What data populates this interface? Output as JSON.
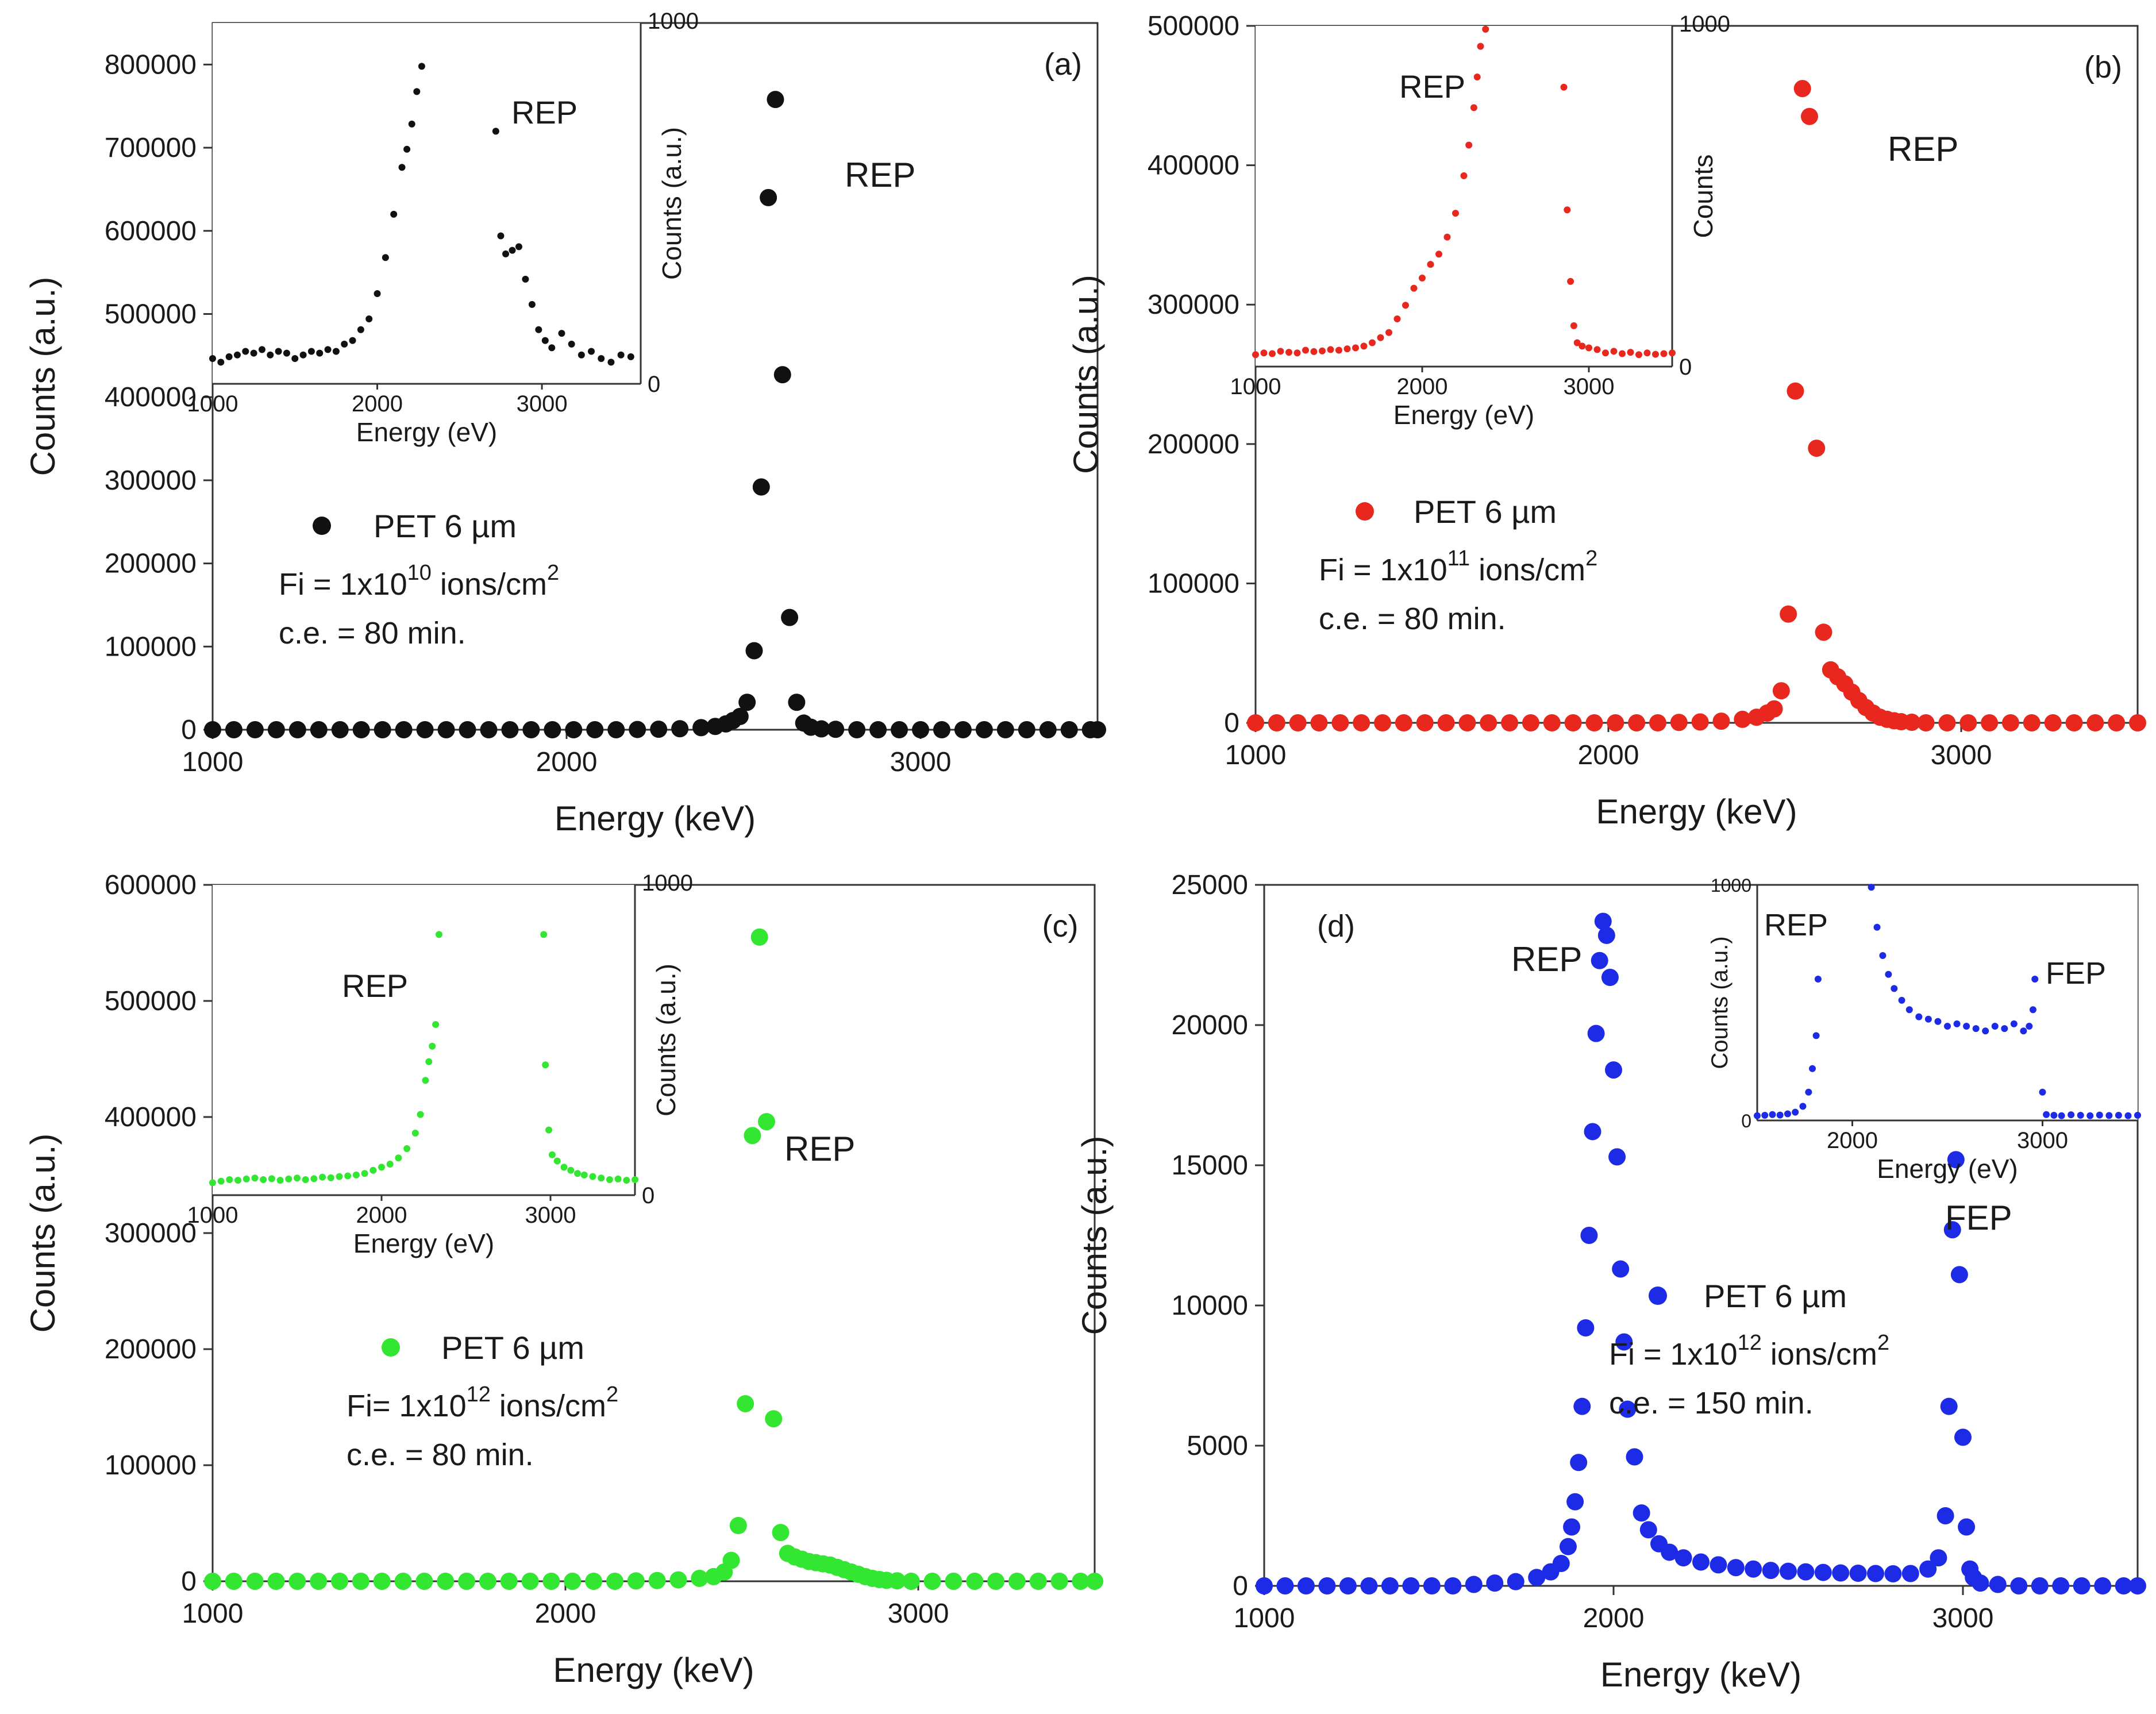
{
  "chart_data": [
    {
      "panel": "(a)",
      "type": "scatter",
      "color": "#111111",
      "xlabel": "Energy (keV)",
      "ylabel": "Counts (a.u.)",
      "xlim": [
        1000,
        3500
      ],
      "ylim": [
        0,
        850000
      ],
      "xticks": [
        "1000",
        "2000",
        "3000"
      ],
      "yticks": [
        "0",
        "100000",
        "200000",
        "300000",
        "400000",
        "500000",
        "600000",
        "700000",
        "800000"
      ],
      "legend": {
        "series": "PET 6 µm",
        "fluence": "Fi = 1x10",
        "fluence_exp": "10",
        "fluence_unit": " ions/cm",
        "unit_exp": "2",
        "etch": "c.e. = 80 min."
      },
      "annotations": [
        "REP"
      ],
      "series": [
        {
          "x": [
            1000,
            1060,
            1120,
            1180,
            1240,
            1300,
            1360,
            1420,
            1480,
            1540,
            1600,
            1660,
            1720,
            1780,
            1840,
            1900,
            1960,
            2020,
            2080,
            2140,
            2200,
            2260,
            2320,
            2380,
            2420,
            2450,
            2470,
            2490,
            2510,
            2530,
            2550,
            2570,
            2590,
            2610,
            2630,
            2650,
            2670,
            2690,
            2720,
            2760,
            2820,
            2880,
            2940,
            3000,
            3060,
            3120,
            3180,
            3240,
            3300,
            3360,
            3420,
            3480,
            3500
          ],
          "y": [
            0,
            0,
            0,
            0,
            0,
            0,
            0,
            0,
            0,
            0,
            0,
            0,
            0,
            0,
            0,
            0,
            0,
            0,
            0,
            0,
            300,
            600,
            1200,
            2500,
            4000,
            7000,
            11000,
            16000,
            33000,
            95000,
            292000,
            640000,
            758000,
            427000,
            135000,
            33000,
            8000,
            3000,
            1000,
            500,
            0,
            0,
            0,
            0,
            0,
            0,
            0,
            0,
            0,
            0,
            0,
            0,
            0
          ]
        }
      ],
      "inset": {
        "xlabel": "Energy (eV)",
        "ylabel": "Counts (a.u.)",
        "xlim": [
          1000,
          3600
        ],
        "ylim": [
          0,
          1000
        ],
        "xticks": [
          "1000",
          "2000",
          "3000"
        ],
        "yticks": [
          "0",
          "1000"
        ],
        "annotation": "REP",
        "x": [
          1000,
          1050,
          1100,
          1150,
          1200,
          1250,
          1300,
          1350,
          1400,
          1450,
          1500,
          1550,
          1600,
          1650,
          1700,
          1750,
          1800,
          1850,
          1900,
          1950,
          2000,
          2050,
          2100,
          2150,
          2180,
          2210,
          2240,
          2270,
          2720,
          2750,
          2780,
          2820,
          2860,
          2900,
          2940,
          2980,
          3020,
          3060,
          3120,
          3180,
          3240,
          3300,
          3360,
          3420,
          3480,
          3540
        ],
        "y": [
          70,
          60,
          75,
          80,
          90,
          85,
          95,
          80,
          90,
          85,
          70,
          80,
          90,
          85,
          95,
          90,
          110,
          120,
          150,
          180,
          250,
          350,
          470,
          600,
          650,
          720,
          810,
          880,
          700,
          410,
          360,
          370,
          380,
          290,
          220,
          150,
          120,
          100,
          140,
          110,
          80,
          90,
          70,
          60,
          80,
          75
        ]
      }
    },
    {
      "panel": "(b)",
      "type": "scatter",
      "color": "#e8281e",
      "xlabel": "Energy (keV)",
      "ylabel": "Counts (a.u.)",
      "xlim": [
        1000,
        3500
      ],
      "ylim": [
        0,
        500000
      ],
      "xticks": [
        "1000",
        "2000",
        "3000"
      ],
      "yticks": [
        "0",
        "100000",
        "200000",
        "300000",
        "400000",
        "500000"
      ],
      "legend": {
        "series": "PET 6 µm",
        "fluence": "Fi = 1x10",
        "fluence_exp": "11",
        "fluence_unit": " ions/cm",
        "unit_exp": "2",
        "etch": "c.e. = 80 min."
      },
      "annotations": [
        "REP"
      ],
      "series": [
        {
          "x": [
            1000,
            1060,
            1120,
            1180,
            1240,
            1300,
            1360,
            1420,
            1480,
            1540,
            1600,
            1660,
            1720,
            1780,
            1840,
            1900,
            1960,
            2020,
            2080,
            2140,
            2200,
            2260,
            2320,
            2380,
            2420,
            2450,
            2470,
            2490,
            2510,
            2530,
            2550,
            2570,
            2590,
            2610,
            2630,
            2650,
            2670,
            2690,
            2710,
            2730,
            2750,
            2770,
            2790,
            2810,
            2830,
            2860,
            2900,
            2960,
            3020,
            3080,
            3140,
            3200,
            3260,
            3320,
            3380,
            3440,
            3500
          ],
          "y": [
            0,
            0,
            0,
            0,
            0,
            0,
            0,
            0,
            0,
            0,
            0,
            0,
            0,
            0,
            0,
            0,
            0,
            0,
            0,
            0,
            300,
            600,
            1200,
            2500,
            4000,
            7000,
            10000,
            23000,
            78000,
            238000,
            455000,
            435000,
            197000,
            65000,
            38000,
            33000,
            28000,
            22000,
            16000,
            11000,
            7000,
            4000,
            2500,
            1500,
            800,
            400,
            0,
            0,
            0,
            0,
            0,
            0,
            0,
            0,
            0,
            0,
            0
          ]
        }
      ],
      "inset": {
        "xlabel": "Energy (eV)",
        "ylabel": "Counts",
        "xlim": [
          1000,
          3500
        ],
        "ylim": [
          0,
          1000
        ],
        "xticks": [
          "1000",
          "2000",
          "3000"
        ],
        "yticks": [
          "0",
          "1000"
        ],
        "annotation": "REP",
        "x": [
          1000,
          1050,
          1100,
          1150,
          1200,
          1250,
          1300,
          1350,
          1400,
          1450,
          1500,
          1550,
          1600,
          1650,
          1700,
          1750,
          1800,
          1850,
          1900,
          1950,
          2000,
          2050,
          2100,
          2150,
          2200,
          2250,
          2280,
          2310,
          2330,
          2350,
          2380,
          2850,
          2870,
          2890,
          2910,
          2930,
          2960,
          3000,
          3050,
          3100,
          3150,
          3200,
          3250,
          3300,
          3350,
          3400,
          3450,
          3500
        ],
        "y": [
          35,
          40,
          38,
          45,
          42,
          40,
          48,
          44,
          46,
          50,
          48,
          52,
          55,
          60,
          70,
          85,
          100,
          140,
          180,
          230,
          260,
          300,
          330,
          380,
          450,
          560,
          650,
          760,
          850,
          940,
          990,
          820,
          460,
          250,
          120,
          70,
          60,
          55,
          50,
          40,
          45,
          38,
          42,
          35,
          40,
          36,
          38,
          40
        ]
      }
    },
    {
      "panel": "(c)",
      "type": "scatter",
      "color": "#32e632",
      "xlabel": "Energy (keV)",
      "ylabel": "Counts (a.u.)",
      "xlim": [
        1000,
        3500
      ],
      "ylim": [
        0,
        600000
      ],
      "xticks": [
        "1000",
        "2000",
        "3000"
      ],
      "yticks": [
        "0",
        "100000",
        "200000",
        "300000",
        "400000",
        "500000",
        "600000"
      ],
      "legend": {
        "series": "PET 6 µm",
        "fluence": "Fi= 1x10",
        "fluence_exp": "12",
        "fluence_unit": " ions/cm",
        "unit_exp": "2",
        "etch": "c.e. = 80 min."
      },
      "annotations": [
        "REP"
      ],
      "series": [
        {
          "x": [
            1000,
            1060,
            1120,
            1180,
            1240,
            1300,
            1360,
            1420,
            1480,
            1540,
            1600,
            1660,
            1720,
            1780,
            1840,
            1900,
            1960,
            2020,
            2080,
            2140,
            2200,
            2260,
            2320,
            2380,
            2420,
            2450,
            2470,
            2490,
            2510,
            2530,
            2550,
            2570,
            2590,
            2610,
            2630,
            2650,
            2670,
            2690,
            2710,
            2730,
            2750,
            2770,
            2790,
            2810,
            2830,
            2850,
            2870,
            2890,
            2910,
            2940,
            2980,
            3040,
            3100,
            3160,
            3220,
            3280,
            3340,
            3400,
            3460,
            3500
          ],
          "y": [
            0,
            0,
            0,
            0,
            0,
            0,
            0,
            0,
            0,
            0,
            0,
            0,
            0,
            0,
            0,
            0,
            0,
            0,
            0,
            0,
            300,
            600,
            1200,
            2500,
            4000,
            8000,
            18000,
            48000,
            153000,
            384000,
            555000,
            396000,
            140000,
            42000,
            24000,
            21000,
            19000,
            17000,
            16000,
            15000,
            14000,
            12000,
            10000,
            8000,
            6000,
            4000,
            2500,
            1500,
            800,
            400,
            0,
            0,
            0,
            0,
            0,
            0,
            0,
            0,
            0,
            0
          ]
        }
      ],
      "inset": {
        "xlabel": "Energy (eV)",
        "ylabel": "Counts  (a.u.)",
        "xlim": [
          1000,
          3500
        ],
        "ylim": [
          0,
          1000
        ],
        "xticks": [
          "1000",
          "2000",
          "3000"
        ],
        "yticks": [
          "0",
          "1000"
        ],
        "annotation": "REP",
        "x": [
          1000,
          1050,
          1100,
          1150,
          1200,
          1250,
          1300,
          1350,
          1400,
          1450,
          1500,
          1550,
          1600,
          1650,
          1700,
          1750,
          1800,
          1850,
          1900,
          1950,
          2000,
          2050,
          2100,
          2150,
          2200,
          2230,
          2260,
          2280,
          2300,
          2320,
          2340,
          2960,
          2970,
          2990,
          3010,
          3040,
          3080,
          3120,
          3160,
          3200,
          3250,
          3300,
          3350,
          3400,
          3450,
          3500
        ],
        "y": [
          40,
          45,
          50,
          48,
          52,
          55,
          50,
          53,
          48,
          52,
          55,
          50,
          53,
          58,
          56,
          60,
          62,
          65,
          70,
          80,
          90,
          100,
          120,
          150,
          200,
          260,
          370,
          430,
          480,
          550,
          840,
          840,
          420,
          210,
          130,
          110,
          90,
          80,
          70,
          65,
          60,
          55,
          50,
          52,
          48,
          50
        ]
      }
    },
    {
      "panel": "(d)",
      "type": "scatter",
      "color": "#1d2be6",
      "xlabel": "Energy (keV)",
      "ylabel": "Counts (a.u.)",
      "xlim": [
        1000,
        3500
      ],
      "ylim": [
        0,
        25000
      ],
      "xticks": [
        "1000",
        "2000",
        "3000"
      ],
      "yticks": [
        "0",
        "5000",
        "10000",
        "15000",
        "20000",
        "25000"
      ],
      "legend": {
        "series": "PET 6 µm",
        "fluence": "Fi = 1x10",
        "fluence_exp": "12",
        "fluence_unit": " ions/cm",
        "unit_exp": "2",
        "etch": "c.e. = 150 min."
      },
      "annotations": [
        "REP",
        "FEP"
      ],
      "series": [
        {
          "x": [
            1000,
            1060,
            1120,
            1180,
            1240,
            1300,
            1360,
            1420,
            1480,
            1540,
            1600,
            1660,
            1720,
            1780,
            1820,
            1850,
            1870,
            1880,
            1890,
            1900,
            1910,
            1920,
            1930,
            1940,
            1950,
            1960,
            1970,
            1980,
            1990,
            2000,
            2010,
            2020,
            2030,
            2040,
            2060,
            2080,
            2100,
            2130,
            2160,
            2200,
            2250,
            2300,
            2350,
            2400,
            2450,
            2500,
            2550,
            2600,
            2650,
            2700,
            2750,
            2800,
            2850,
            2900,
            2930,
            2950,
            2960,
            2970,
            2980,
            2990,
            3000,
            3010,
            3020,
            3030,
            3050,
            3100,
            3160,
            3220,
            3280,
            3340,
            3400,
            3460,
            3500
          ],
          "y": [
            0,
            0,
            0,
            0,
            0,
            0,
            0,
            0,
            0,
            0,
            50,
            100,
            150,
            300,
            500,
            800,
            1400,
            2100,
            3000,
            4400,
            6400,
            9200,
            12500,
            16200,
            19700,
            22300,
            23700,
            23200,
            21700,
            18400,
            15300,
            11300,
            8700,
            6300,
            4600,
            2600,
            2000,
            1500,
            1200,
            1000,
            850,
            750,
            650,
            600,
            550,
            520,
            500,
            480,
            460,
            450,
            440,
            430,
            440,
            600,
            1000,
            2500,
            6400,
            12700,
            15200,
            11100,
            5300,
            2100,
            600,
            300,
            100,
            50,
            0,
            0,
            0,
            0,
            0,
            0,
            0
          ]
        }
      ],
      "inset": {
        "xlabel": "Energy (eV)",
        "ylabel": "Counts  (a.u.)",
        "xlim": [
          1500,
          3500
        ],
        "ylim": [
          0,
          1000
        ],
        "xticks": [
          "2000",
          "3000"
        ],
        "yticks": [
          "0",
          "1000"
        ],
        "annotation": "REP",
        "annotation2": "FEP",
        "x": [
          1500,
          1540,
          1580,
          1620,
          1660,
          1700,
          1740,
          1770,
          1790,
          1810,
          1820,
          2100,
          2130,
          2160,
          2190,
          2220,
          2260,
          2300,
          2350,
          2400,
          2450,
          2500,
          2550,
          2600,
          2650,
          2700,
          2750,
          2800,
          2850,
          2900,
          2930,
          2950,
          2960,
          3000,
          3020,
          3060,
          3100,
          3150,
          3200,
          3250,
          3300,
          3350,
          3400,
          3450,
          3500
        ],
        "y": [
          20,
          22,
          25,
          23,
          28,
          35,
          60,
          120,
          220,
          360,
          600,
          990,
          820,
          700,
          620,
          560,
          510,
          470,
          440,
          430,
          420,
          400,
          410,
          400,
          390,
          380,
          400,
          390,
          410,
          380,
          400,
          470,
          600,
          120,
          25,
          22,
          20,
          24,
          22,
          20,
          23,
          21,
          22,
          20,
          22
        ]
      }
    }
  ]
}
